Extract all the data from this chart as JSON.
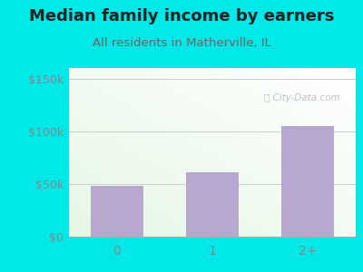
{
  "title": "Median family income by earners",
  "subtitle": "All residents in Matherville, IL",
  "categories": [
    "0",
    "1",
    "2+"
  ],
  "values": [
    48000,
    61000,
    105000
  ],
  "bar_color": "#b8a8d0",
  "title_color": "#222222",
  "subtitle_color": "#7a6060",
  "outer_bg_color": "#00e8e8",
  "yticks": [
    0,
    50000,
    100000,
    150000
  ],
  "ytick_labels": [
    "$0",
    "$50k",
    "$100k",
    "$150k"
  ],
  "ylim": [
    0,
    160000
  ],
  "watermark": "City-Data.com",
  "title_fontsize": 13,
  "subtitle_fontsize": 9.5,
  "tick_color": "#888888",
  "axis_color": "#aaaaaa",
  "grid_color": "#cccccc"
}
